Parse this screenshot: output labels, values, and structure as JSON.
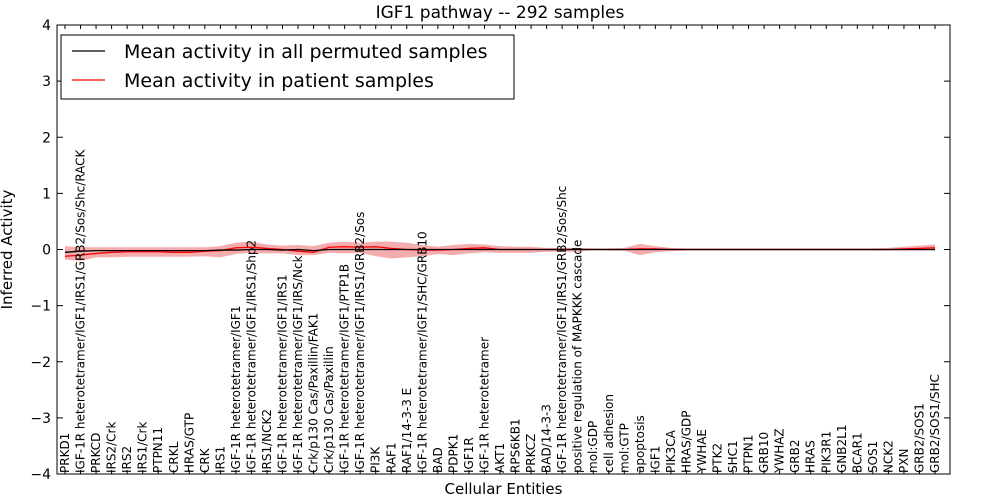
{
  "chart_data": {
    "type": "line",
    "title": "IGF1 pathway -- 292 samples",
    "xlabel": "Cellular Entities",
    "ylabel": "Inferred Activity",
    "ylim": [
      -4,
      4
    ],
    "yticks": [
      -4,
      -3,
      -2,
      -1,
      0,
      1,
      2,
      3,
      4
    ],
    "legend_position": "top-left",
    "colors": {
      "permuted": "#000000",
      "patient": "#ff0000",
      "band": "#f08080"
    },
    "categories": [
      "PRKD1",
      "IGF-1R heterotetramer/IGF1/IRS1/GRB2/Sos/Shc/RACK",
      "PRKCD",
      "IRS2/Crk",
      "IRS2",
      "IRS1/Crk",
      "PTPN11",
      "CRKL",
      "HRAS/GTP",
      "CRK",
      "IRS1",
      "IGF-1R heterotetramer/IGF1",
      "IGF-1R heterotetramer/IGF1/IRS1/Shp2",
      "IRS1/NCK2",
      "IGF-1R heterotetramer/IGF1/IRS1",
      "IGF-1R heterotetramer/IGF1/IRS/Nck",
      "Crk/p130 Cas/Paxillin/FAK1",
      "Crk/p130 Cas/Paxillin",
      "IGF-1R heterotetramer/IGF1/PTP1B",
      "IGF-1R heterotetramer/IGF1/IRS1/GRB2/Sos",
      "PI3K",
      "RAF1",
      "RAF1/14-3-3 E",
      "IGF-1R heterotetramer/IGF1/SHC/GRB10",
      "BAD",
      "PDPK1",
      "IGF1R",
      "IGF-1R heterotetramer",
      "AKT1",
      "RPS6KB1",
      "PRKCZ",
      "BAD/14-3-3",
      "IGF-1R heterotetramer/IGF1/IRS1/GRB2/Sos/Shc",
      "positive regulation of MAPKKK cascade",
      "mol:GDP",
      "cell adhesion",
      "mol:GTP",
      "apoptosis",
      "IGF1",
      "PIK3CA",
      "HRAS/GDP",
      "YWHAE",
      "PTK2",
      "SHC1",
      "PTPN1",
      "GRB10",
      "YWHAZ",
      "GRB2",
      "HRAS",
      "PIK3R1",
      "GNB2L1",
      "BCAR1",
      "SOS1",
      "NCK2",
      "PXN",
      "GRB2/SOS1",
      "GRB2/SOS1/SHC"
    ],
    "series": [
      {
        "name": "Mean activity in all permuted samples",
        "values": [
          -0.05,
          -0.03,
          -0.02,
          -0.02,
          -0.02,
          -0.02,
          -0.02,
          -0.02,
          -0.02,
          -0.02,
          -0.01,
          -0.01,
          0.0,
          0.0,
          -0.01,
          0.0,
          -0.02,
          0.0,
          0.0,
          0.0,
          0.0,
          0.0,
          0.0,
          0.0,
          0.0,
          0.0,
          0.0,
          0.0,
          0.0,
          0.0,
          0.0,
          0.0,
          0.0,
          0.0,
          0.0,
          0.0,
          0.0,
          0.0,
          0.0,
          0.0,
          0.0,
          0.0,
          0.0,
          0.0,
          0.0,
          0.0,
          0.0,
          0.0,
          0.0,
          0.0,
          0.0,
          0.0,
          0.0,
          0.0,
          0.0,
          0.0,
          0.0
        ]
      },
      {
        "name": "Mean activity in patient samples",
        "values": [
          -0.12,
          -0.1,
          -0.07,
          -0.05,
          -0.04,
          -0.04,
          -0.04,
          -0.05,
          -0.05,
          -0.03,
          -0.02,
          0.03,
          0.04,
          0.02,
          0.0,
          -0.03,
          -0.05,
          0.04,
          0.05,
          0.04,
          0.05,
          0.02,
          0.0,
          -0.01,
          -0.01,
          0.0,
          0.02,
          0.03,
          0.0,
          0.0,
          0.0,
          0.0,
          0.0,
          0.0,
          0.0,
          0.0,
          0.0,
          0.01,
          0.01,
          0.0,
          0.0,
          0.0,
          0.0,
          0.0,
          0.0,
          0.0,
          0.0,
          0.0,
          0.0,
          0.0,
          0.0,
          0.0,
          0.0,
          0.0,
          0.01,
          0.02,
          0.03
        ]
      }
    ],
    "band": {
      "lower": [
        -0.18,
        -0.2,
        -0.14,
        -0.14,
        -0.13,
        -0.13,
        -0.13,
        -0.13,
        -0.13,
        -0.12,
        -0.14,
        -0.08,
        -0.06,
        -0.07,
        -0.07,
        -0.1,
        -0.1,
        -0.06,
        -0.07,
        -0.06,
        -0.12,
        -0.16,
        -0.14,
        -0.12,
        -0.08,
        -0.1,
        -0.07,
        -0.05,
        -0.06,
        -0.06,
        -0.06,
        -0.04,
        -0.04,
        -0.04,
        -0.01,
        -0.02,
        -0.02,
        -0.1,
        -0.05,
        -0.03,
        -0.02,
        -0.02,
        -0.02,
        -0.02,
        -0.02,
        -0.02,
        -0.02,
        -0.02,
        -0.02,
        -0.02,
        -0.02,
        -0.02,
        -0.02,
        -0.02,
        -0.02,
        -0.02,
        -0.02
      ],
      "upper": [
        0.06,
        0.04,
        0.04,
        0.04,
        0.04,
        0.04,
        0.04,
        0.04,
        0.04,
        0.04,
        0.06,
        0.12,
        0.14,
        0.09,
        0.07,
        0.08,
        0.06,
        0.12,
        0.14,
        0.12,
        0.14,
        0.14,
        0.12,
        0.08,
        0.05,
        0.08,
        0.1,
        0.09,
        0.06,
        0.05,
        0.05,
        0.03,
        0.03,
        0.03,
        0.02,
        0.02,
        0.03,
        0.1,
        0.06,
        0.03,
        0.02,
        0.02,
        0.02,
        0.02,
        0.02,
        0.02,
        0.02,
        0.02,
        0.02,
        0.02,
        0.02,
        0.02,
        0.02,
        0.03,
        0.05,
        0.07,
        0.09
      ]
    }
  }
}
